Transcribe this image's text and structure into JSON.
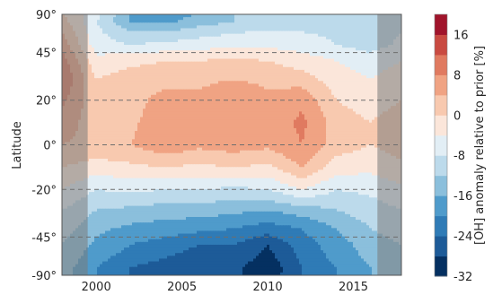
{
  "chart_data": {
    "type": "heatmap",
    "subtype": "filled-contour",
    "title": "",
    "xlabel": "",
    "ylabel": "Latitude",
    "xlim": [
      1998,
      2017.8
    ],
    "x_ticks": [
      2000,
      2005,
      2010,
      2015
    ],
    "x_tick_labels": [
      "2000",
      "2005",
      "2010",
      "2015"
    ],
    "y_axis_scale": "sine of latitude",
    "y_ticks": [
      90,
      45,
      20,
      0,
      -20,
      -45,
      -90
    ],
    "y_tick_labels": [
      "90°",
      "45°",
      "20°",
      "0°",
      "-20°",
      "-45°",
      "-90°"
    ],
    "gridlines_dashed_at_latitude": [
      45,
      20,
      0,
      -20,
      -45
    ],
    "shaded_excluded_periods": [
      [
        1998,
        1999.5
      ],
      [
        2016.4,
        2017.8
      ]
    ],
    "colorbar": {
      "label": "[OH] anomaly relative to prior [%]",
      "ticks": [
        16,
        8,
        0,
        -8,
        -16,
        -24,
        -32
      ],
      "levels": [
        -32,
        -28,
        -24,
        -20,
        -16,
        -12,
        -8,
        -4,
        0,
        4,
        8,
        12,
        16,
        20
      ],
      "colormap": "RdBu_r",
      "colors": [
        "#053061",
        "#1d5b98",
        "#2f7bb6",
        "#4f9bcb",
        "#8bbfdc",
        "#bcdaeb",
        "#e2eef5",
        "#fbe6da",
        "#f8c9af",
        "#f0a383",
        "#e07a60",
        "#c94a41",
        "#a0142b"
      ]
    },
    "x": [
      1998,
      2000,
      2002,
      2004,
      2006,
      2008,
      2010,
      2012,
      2014,
      2016,
      2017.8
    ],
    "y_latitude": [
      -90,
      -70,
      -50,
      -40,
      -30,
      -20,
      -10,
      0,
      10,
      20,
      30,
      40,
      50,
      70,
      90
    ],
    "z_percent_rows_by_latitude": [
      [
        -14,
        -20,
        -24,
        -26,
        -28,
        -27,
        -30,
        -24,
        -20,
        -16,
        -14
      ],
      [
        -14,
        -20,
        -24,
        -26,
        -28,
        -27,
        -31,
        -24,
        -20,
        -16,
        -14
      ],
      [
        -12,
        -17,
        -20,
        -22,
        -24,
        -24,
        -28,
        -22,
        -18,
        -14,
        -12
      ],
      [
        -10,
        -15,
        -17,
        -18,
        -19,
        -20,
        -22,
        -20,
        -16,
        -12,
        -10
      ],
      [
        -8,
        -12,
        -13,
        -14,
        -14,
        -15,
        -16,
        -14,
        -12,
        -10,
        -8
      ],
      [
        -4,
        -8,
        -7,
        -8,
        -8,
        -9,
        -8,
        -4,
        -8,
        -7,
        -5
      ],
      [
        0,
        -2,
        -1,
        0,
        -1,
        0,
        -1,
        4,
        -2,
        -3,
        -1
      ],
      [
        4,
        3,
        4,
        7,
        5,
        6,
        5,
        8,
        2,
        0,
        2
      ],
      [
        6,
        2,
        3,
        7,
        4,
        7,
        5,
        9,
        2,
        0,
        2
      ],
      [
        9,
        1,
        2,
        6,
        5,
        8,
        5,
        7,
        0,
        -2,
        0
      ],
      [
        12,
        0,
        2,
        2,
        3,
        4,
        3,
        2,
        -2,
        -4,
        -2
      ],
      [
        10,
        -3,
        -1,
        0,
        0,
        1,
        0,
        -2,
        -4,
        -6,
        -4
      ],
      [
        6,
        -6,
        -8,
        -7,
        -6,
        -5,
        -5,
        -6,
        -8,
        -10,
        -7
      ],
      [
        2,
        -8,
        -16,
        -17,
        -14,
        -12,
        -10,
        -10,
        -10,
        -12,
        -9
      ],
      [
        0,
        -6,
        -16,
        -20,
        -16,
        -12,
        -10,
        -10,
        -10,
        -12,
        -9
      ]
    ]
  }
}
